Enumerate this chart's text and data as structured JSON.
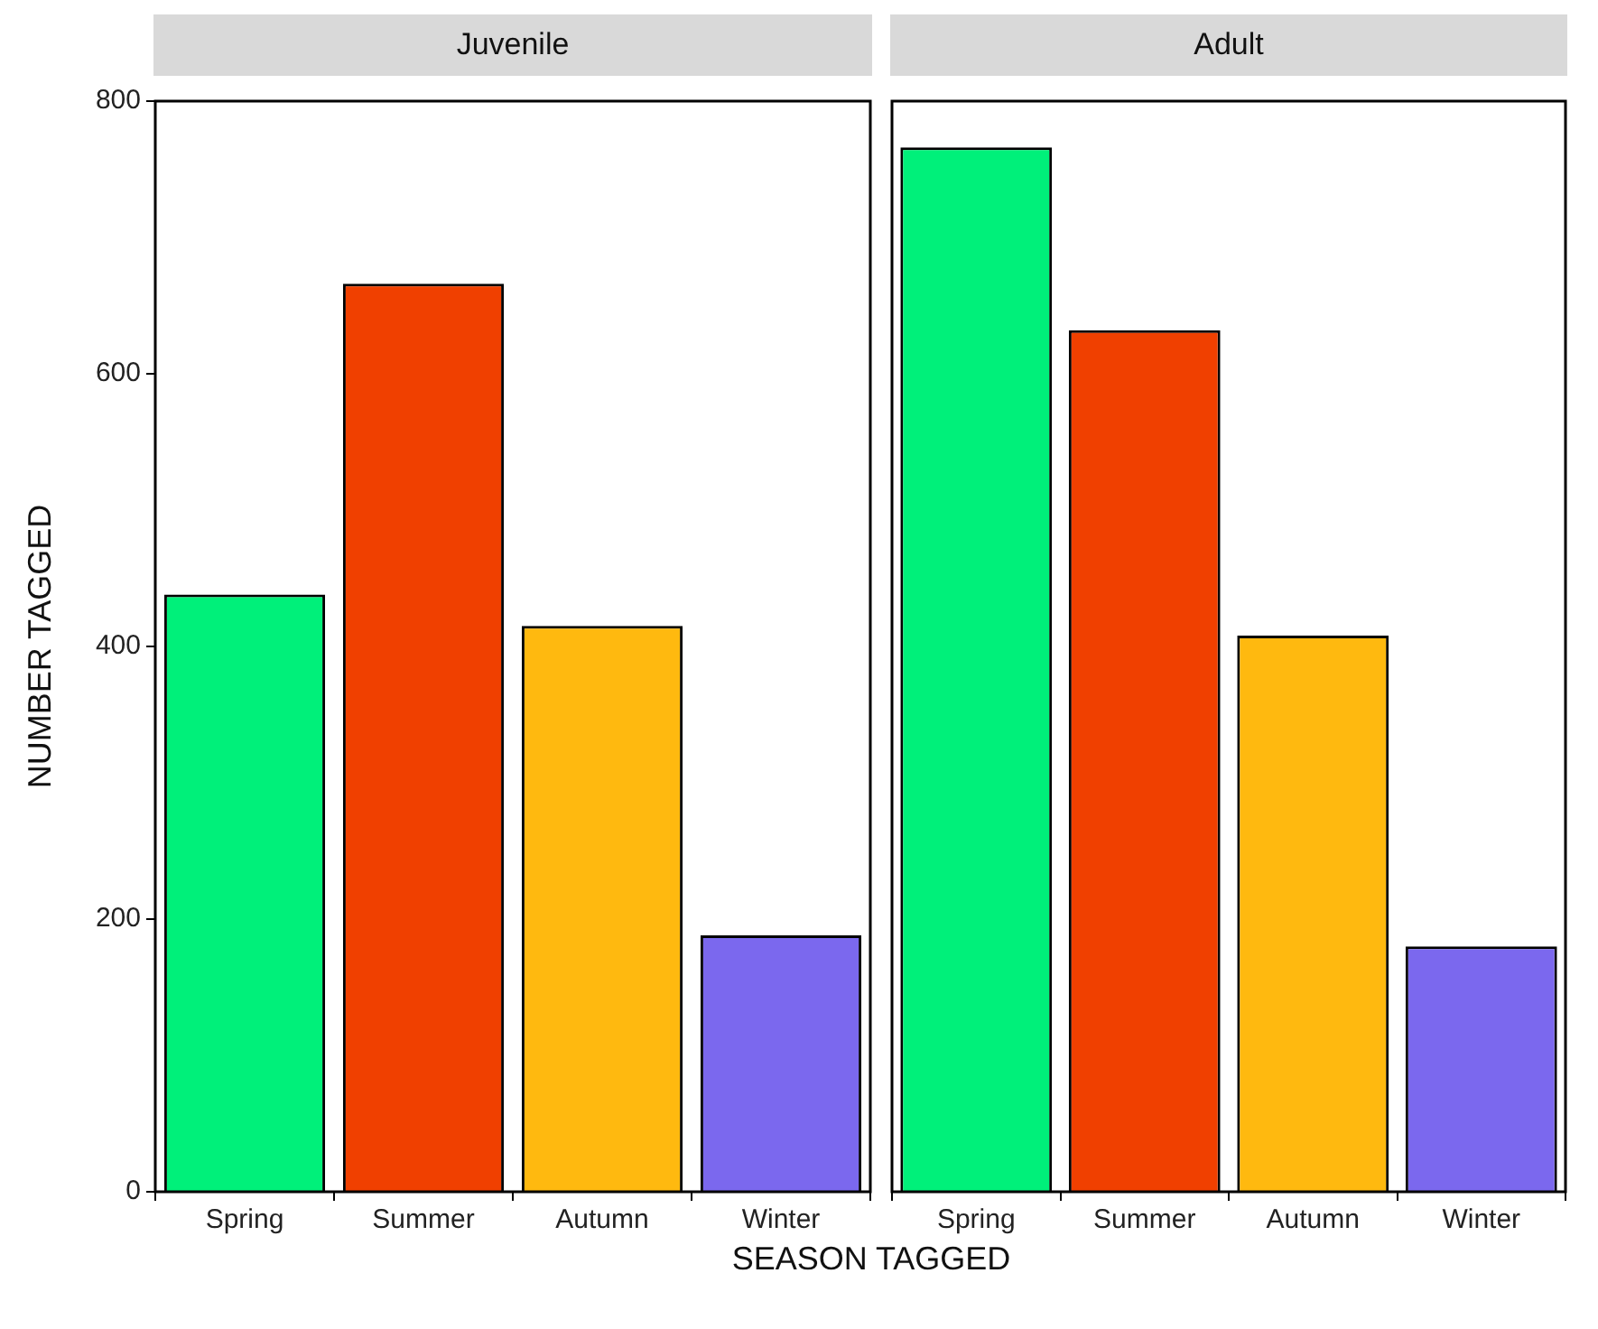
{
  "chart_data": [
    {
      "type": "bar",
      "title": "Juvenile",
      "ylabel": "NUMBER TAGGED",
      "xlabel": "SEASON TAGGED",
      "categories": [
        "Spring",
        "Summer",
        "Autumn",
        "Winter"
      ],
      "values": [
        438,
        666,
        415,
        188
      ],
      "colors": [
        "#00f07a",
        "#f04000",
        "#ffb90f",
        "#7b68ee"
      ],
      "ylim": [
        0,
        800
      ],
      "yticks": [
        0,
        200,
        400,
        600,
        800
      ],
      "grid": false
    },
    {
      "type": "bar",
      "title": "Adult",
      "categories": [
        "Spring",
        "Summer",
        "Autumn",
        "Winter"
      ],
      "values": [
        766,
        632,
        408,
        180
      ],
      "colors": [
        "#00f07a",
        "#f04000",
        "#ffb90f",
        "#7b68ee"
      ],
      "ylim": [
        0,
        800
      ],
      "yticks": [
        0,
        200,
        400,
        600,
        800
      ],
      "grid": false,
      "tick_labels": "x"
    }
  ]
}
